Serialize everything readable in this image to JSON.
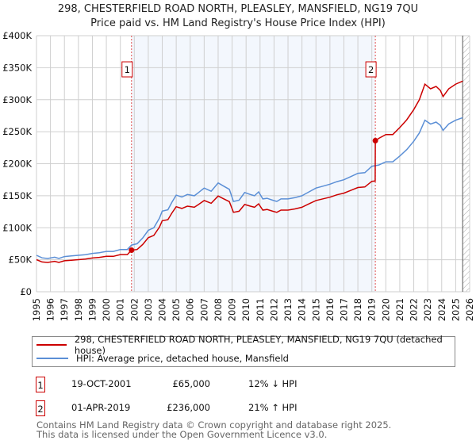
{
  "title": "298, CHESTERFIELD ROAD NORTH, PLEASLEY, MANSFIELD, NG19 7QU",
  "subtitle": "Price paid vs. HM Land Registry's House Price Index (HPI)",
  "chart_data": {
    "type": "line",
    "title": "298, CHESTERFIELD ROAD NORTH, PLEASLEY, MANSFIELD, NG19 7QU",
    "subtitle": "Price paid vs. HM Land Registry's House Price Index (HPI)",
    "xlim": [
      1995,
      2026
    ],
    "ylim": [
      0,
      400000
    ],
    "grid": true,
    "legend_placement": "bottom",
    "y_ticks": [
      {
        "value": 0,
        "label": "£0"
      },
      {
        "value": 50000,
        "label": "£50K"
      },
      {
        "value": 100000,
        "label": "£100K"
      },
      {
        "value": 150000,
        "label": "£150K"
      },
      {
        "value": 200000,
        "label": "£200K"
      },
      {
        "value": 250000,
        "label": "£250K"
      },
      {
        "value": 300000,
        "label": "£300K"
      },
      {
        "value": 350000,
        "label": "£350K"
      },
      {
        "value": 400000,
        "label": "£400K"
      }
    ],
    "x_ticks": [
      "1995",
      "1996",
      "1997",
      "1998",
      "1999",
      "2000",
      "2001",
      "2002",
      "2003",
      "2004",
      "2005",
      "2006",
      "2007",
      "2008",
      "2009",
      "2010",
      "2011",
      "2012",
      "2013",
      "2014",
      "2015",
      "2016",
      "2017",
      "2018",
      "2019",
      "2020",
      "2021",
      "2022",
      "2023",
      "2024",
      "2025",
      "2026"
    ],
    "shaded_range": [
      2001.8,
      2019.25
    ],
    "forecast_hatch_from": 2025.5,
    "series": [
      {
        "name": "298, CHESTERFIELD ROAD NORTH, PLEASLEY, MANSFIELD, NG19 7QU (detached house)",
        "color": "#cc0000",
        "points": [
          [
            1995,
            50200
          ],
          [
            1995.4,
            46600
          ],
          [
            1995.8,
            45800
          ],
          [
            1996.3,
            47500
          ],
          [
            1996.6,
            45800
          ],
          [
            1997,
            48400
          ],
          [
            1997.5,
            49300
          ],
          [
            1998,
            50200
          ],
          [
            1998.5,
            51000
          ],
          [
            1999,
            52800
          ],
          [
            1999.5,
            53700
          ],
          [
            2000,
            55400
          ],
          [
            2000.5,
            55400
          ],
          [
            2001,
            58100
          ],
          [
            2001.5,
            58100
          ],
          [
            2001.8,
            65000
          ],
          [
            2002.2,
            66000
          ],
          [
            2002.6,
            73900
          ],
          [
            2003,
            84500
          ],
          [
            2003.4,
            88000
          ],
          [
            2003.8,
            101000
          ],
          [
            2004,
            110900
          ],
          [
            2004.4,
            112600
          ],
          [
            2004.7,
            123200
          ],
          [
            2005,
            132900
          ],
          [
            2005.4,
            130200
          ],
          [
            2005.8,
            133800
          ],
          [
            2006.3,
            132000
          ],
          [
            2006.6,
            136400
          ],
          [
            2007,
            142600
          ],
          [
            2007.5,
            138200
          ],
          [
            2008,
            149600
          ],
          [
            2008.4,
            145200
          ],
          [
            2008.8,
            140800
          ],
          [
            2009.1,
            124100
          ],
          [
            2009.5,
            125800
          ],
          [
            2009.9,
            136400
          ],
          [
            2010.3,
            133800
          ],
          [
            2010.6,
            132000
          ],
          [
            2010.9,
            137300
          ],
          [
            2011.2,
            127600
          ],
          [
            2011.5,
            128500
          ],
          [
            2011.9,
            125800
          ],
          [
            2012.2,
            124100
          ],
          [
            2012.5,
            127600
          ],
          [
            2013,
            127600
          ],
          [
            2013.5,
            129400
          ],
          [
            2014,
            132000
          ],
          [
            2014.5,
            137300
          ],
          [
            2015,
            142600
          ],
          [
            2015.5,
            145200
          ],
          [
            2016,
            147800
          ],
          [
            2016.5,
            151400
          ],
          [
            2017,
            154000
          ],
          [
            2017.5,
            158400
          ],
          [
            2018,
            162800
          ],
          [
            2018.5,
            163700
          ],
          [
            2019,
            172500
          ],
          [
            2019.24,
            173000
          ],
          [
            2019.25,
            236000
          ],
          [
            2019.5,
            239600
          ],
          [
            2020,
            245600
          ],
          [
            2020.5,
            245600
          ],
          [
            2021,
            256500
          ],
          [
            2021.5,
            268600
          ],
          [
            2022,
            284400
          ],
          [
            2022.4,
            300000
          ],
          [
            2022.8,
            324300
          ],
          [
            2023.2,
            317000
          ],
          [
            2023.6,
            320700
          ],
          [
            2023.9,
            314600
          ],
          [
            2024.1,
            304900
          ],
          [
            2024.5,
            317000
          ],
          [
            2025,
            324300
          ],
          [
            2025.5,
            329100
          ]
        ]
      },
      {
        "name": "HPI: Average price, detached house, Mansfield",
        "color": "#5b8fd6",
        "points": [
          [
            1995,
            57000
          ],
          [
            1995.4,
            53000
          ],
          [
            1995.8,
            52000
          ],
          [
            1996.3,
            54000
          ],
          [
            1996.6,
            52000
          ],
          [
            1997,
            55000
          ],
          [
            1997.5,
            56000
          ],
          [
            1998,
            57000
          ],
          [
            1998.5,
            58000
          ],
          [
            1999,
            60000
          ],
          [
            1999.5,
            61000
          ],
          [
            2000,
            63000
          ],
          [
            2000.5,
            63000
          ],
          [
            2001,
            66000
          ],
          [
            2001.5,
            66000
          ],
          [
            2001.8,
            73000
          ],
          [
            2002.2,
            75000
          ],
          [
            2002.6,
            84000
          ],
          [
            2003,
            96000
          ],
          [
            2003.4,
            100000
          ],
          [
            2003.8,
            115000
          ],
          [
            2004,
            126000
          ],
          [
            2004.4,
            128000
          ],
          [
            2004.7,
            140000
          ],
          [
            2005,
            151000
          ],
          [
            2005.4,
            148000
          ],
          [
            2005.8,
            152000
          ],
          [
            2006.3,
            150000
          ],
          [
            2006.6,
            155000
          ],
          [
            2007,
            162000
          ],
          [
            2007.5,
            157000
          ],
          [
            2008,
            170000
          ],
          [
            2008.4,
            165000
          ],
          [
            2008.8,
            160000
          ],
          [
            2009.1,
            141000
          ],
          [
            2009.5,
            143000
          ],
          [
            2009.9,
            155000
          ],
          [
            2010.3,
            152000
          ],
          [
            2010.6,
            150000
          ],
          [
            2010.9,
            156000
          ],
          [
            2011.2,
            145000
          ],
          [
            2011.5,
            146000
          ],
          [
            2011.9,
            143000
          ],
          [
            2012.2,
            141000
          ],
          [
            2012.5,
            145000
          ],
          [
            2013,
            145000
          ],
          [
            2013.5,
            147000
          ],
          [
            2014,
            150000
          ],
          [
            2014.5,
            156000
          ],
          [
            2015,
            162000
          ],
          [
            2015.5,
            165000
          ],
          [
            2016,
            168000
          ],
          [
            2016.5,
            172000
          ],
          [
            2017,
            175000
          ],
          [
            2017.5,
            180000
          ],
          [
            2018,
            185000
          ],
          [
            2018.5,
            186000
          ],
          [
            2019,
            196000
          ],
          [
            2019.5,
            198000
          ],
          [
            2020,
            203000
          ],
          [
            2020.5,
            203000
          ],
          [
            2021,
            212000
          ],
          [
            2021.5,
            222000
          ],
          [
            2022,
            235000
          ],
          [
            2022.4,
            248000
          ],
          [
            2022.8,
            268000
          ],
          [
            2023.2,
            262000
          ],
          [
            2023.6,
            265000
          ],
          [
            2023.9,
            260000
          ],
          [
            2024.1,
            252000
          ],
          [
            2024.5,
            262000
          ],
          [
            2025,
            268000
          ],
          [
            2025.5,
            272000
          ]
        ]
      }
    ],
    "sales": [
      {
        "label": "1",
        "x": 2001.8,
        "value": 65000,
        "date": "19-OCT-2001",
        "price": "£65,000",
        "hpi_diff": "12% ↓ HPI"
      },
      {
        "label": "2",
        "x": 2019.25,
        "value": 236000,
        "date": "01-APR-2019",
        "price": "£236,000",
        "hpi_diff": "21% ↑ HPI"
      }
    ]
  },
  "legend": {
    "property": "298, CHESTERFIELD ROAD NORTH, PLEASLEY, MANSFIELD, NG19 7QU (detached house)",
    "hpi": "HPI: Average price, detached house, Mansfield"
  },
  "footer": {
    "line1": "Contains HM Land Registry data © Crown copyright and database right 2025.",
    "line2": "This data is licensed under the Open Government Licence v3.0."
  }
}
